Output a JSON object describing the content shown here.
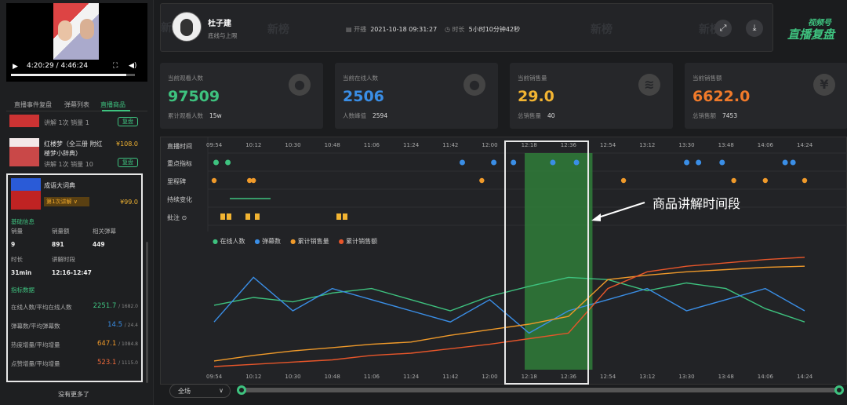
{
  "player": {
    "time": "4:20:29 / 4:46:24",
    "progress": 0.93
  },
  "left_tabs": [
    "直播事件复盘",
    "弹幕列表",
    "直播商品"
  ],
  "products": [
    {
      "meta": "讲解 1次  销量 1",
      "action": "复盘"
    },
    {
      "name": "红楼梦（全三册 附红楼梦小辞典）",
      "price": "¥108.0",
      "meta": "讲解 1次  销量 10",
      "action": "复盘"
    }
  ],
  "selected_product": {
    "name": "成语大词典",
    "session_select": "第1次讲解",
    "price": "¥99.0",
    "basic_title": "基础信息",
    "basic": [
      {
        "label": "销量",
        "value": "9"
      },
      {
        "label": "销量额",
        "value": "891"
      },
      {
        "label": "相关弹幕",
        "value": "449"
      },
      {
        "label": "时长",
        "value": "31min"
      },
      {
        "label": "讲解时段",
        "value": "12:16-12:47"
      }
    ],
    "metrics_title": "指标数据",
    "metrics": [
      {
        "label": "在线人数/平均在线人数",
        "value": "2251.7",
        "avg": "/ 1682.0",
        "color": "#3ec27f"
      },
      {
        "label": "弹幕数/平均弹幕数",
        "value": "14.5",
        "avg": "/ 24.4",
        "color": "#3a8ee6"
      },
      {
        "label": "热度增量/平均增量",
        "value": "647.1",
        "avg": "/ 1084.8",
        "color": "#f09a2a"
      },
      {
        "label": "点赞增量/平均增量",
        "value": "523.1",
        "avg": "/ 1115.0",
        "color": "#f06a3a"
      }
    ]
  },
  "no_more": "没有更多了",
  "header": {
    "name": "杜子建",
    "subtitle": "底线与上限",
    "start_label": "开播",
    "start_value": "2021-10-18 09:31:27",
    "duration_label": "时长",
    "duration_value": "5小时10分钟42秒",
    "watermark": "新榜",
    "logo_line1": "视频号",
    "logo_line2": "直播复盘"
  },
  "stats": [
    {
      "label": "当前观看人数",
      "value": "97509",
      "color": "#3ec27f",
      "sub_label": "累计观看人数",
      "sub_value": "15w",
      "icon": "user-icon"
    },
    {
      "label": "当前在线人数",
      "value": "2506",
      "color": "#3a8ee6",
      "sub_label": "人数峰值",
      "sub_value": "2594",
      "icon": "user-icon"
    },
    {
      "label": "当前销售量",
      "value": "29.0",
      "color": "#f2b432",
      "sub_label": "总销售量",
      "sub_value": "40",
      "icon": "stack-icon"
    },
    {
      "label": "当前销售额",
      "value": "6622.0",
      "color": "#f07a2a",
      "sub_label": "总销售额",
      "sub_value": "7453",
      "icon": "yen-icon"
    }
  ],
  "timeline": {
    "row_labels": [
      "直播时间",
      "重点指标",
      "里程碑",
      "持续变化",
      "批注 ⊙"
    ],
    "ticks": [
      "09:54",
      "10:12",
      "10:30",
      "10:48",
      "11:06",
      "11:24",
      "11:42",
      "12:00",
      "12:18",
      "12:36",
      "12:54",
      "13:12",
      "13:30",
      "13:48",
      "14:06",
      "14:24"
    ],
    "legend": [
      "在线人数",
      "弹幕数",
      "累计销售量",
      "累计销售额"
    ],
    "range_label": "全场",
    "annotation": "商品讲解时间段"
  },
  "chart_data": {
    "type": "line",
    "x": [
      "09:54",
      "10:12",
      "10:30",
      "10:48",
      "11:06",
      "11:24",
      "11:42",
      "12:00",
      "12:18",
      "12:36",
      "12:54",
      "13:12",
      "13:30",
      "13:48",
      "14:06",
      "14:24"
    ],
    "highlight_range": [
      "12:16",
      "12:47"
    ],
    "series": [
      {
        "name": "在线人数",
        "color": "#3ec27f",
        "values": [
          0.55,
          0.62,
          0.58,
          0.66,
          0.7,
          0.6,
          0.5,
          0.63,
          0.72,
          0.8,
          0.78,
          0.68,
          0.75,
          0.7,
          0.52,
          0.4
        ]
      },
      {
        "name": "弹幕数",
        "color": "#3a8ee6",
        "values": [
          0.4,
          0.8,
          0.5,
          0.7,
          0.6,
          0.5,
          0.4,
          0.6,
          0.3,
          0.5,
          0.6,
          0.7,
          0.5,
          0.6,
          0.7,
          0.5
        ]
      },
      {
        "name": "累计销售量",
        "color": "#f09a2a",
        "values": [
          0.05,
          0.1,
          0.14,
          0.17,
          0.2,
          0.22,
          0.28,
          0.33,
          0.38,
          0.45,
          0.78,
          0.82,
          0.85,
          0.87,
          0.89,
          0.9
        ]
      },
      {
        "name": "累计销售额",
        "color": "#e8562a",
        "values": [
          0.0,
          0.02,
          0.04,
          0.06,
          0.1,
          0.12,
          0.16,
          0.2,
          0.25,
          0.3,
          0.7,
          0.85,
          0.9,
          0.93,
          0.96,
          0.98
        ]
      }
    ]
  }
}
